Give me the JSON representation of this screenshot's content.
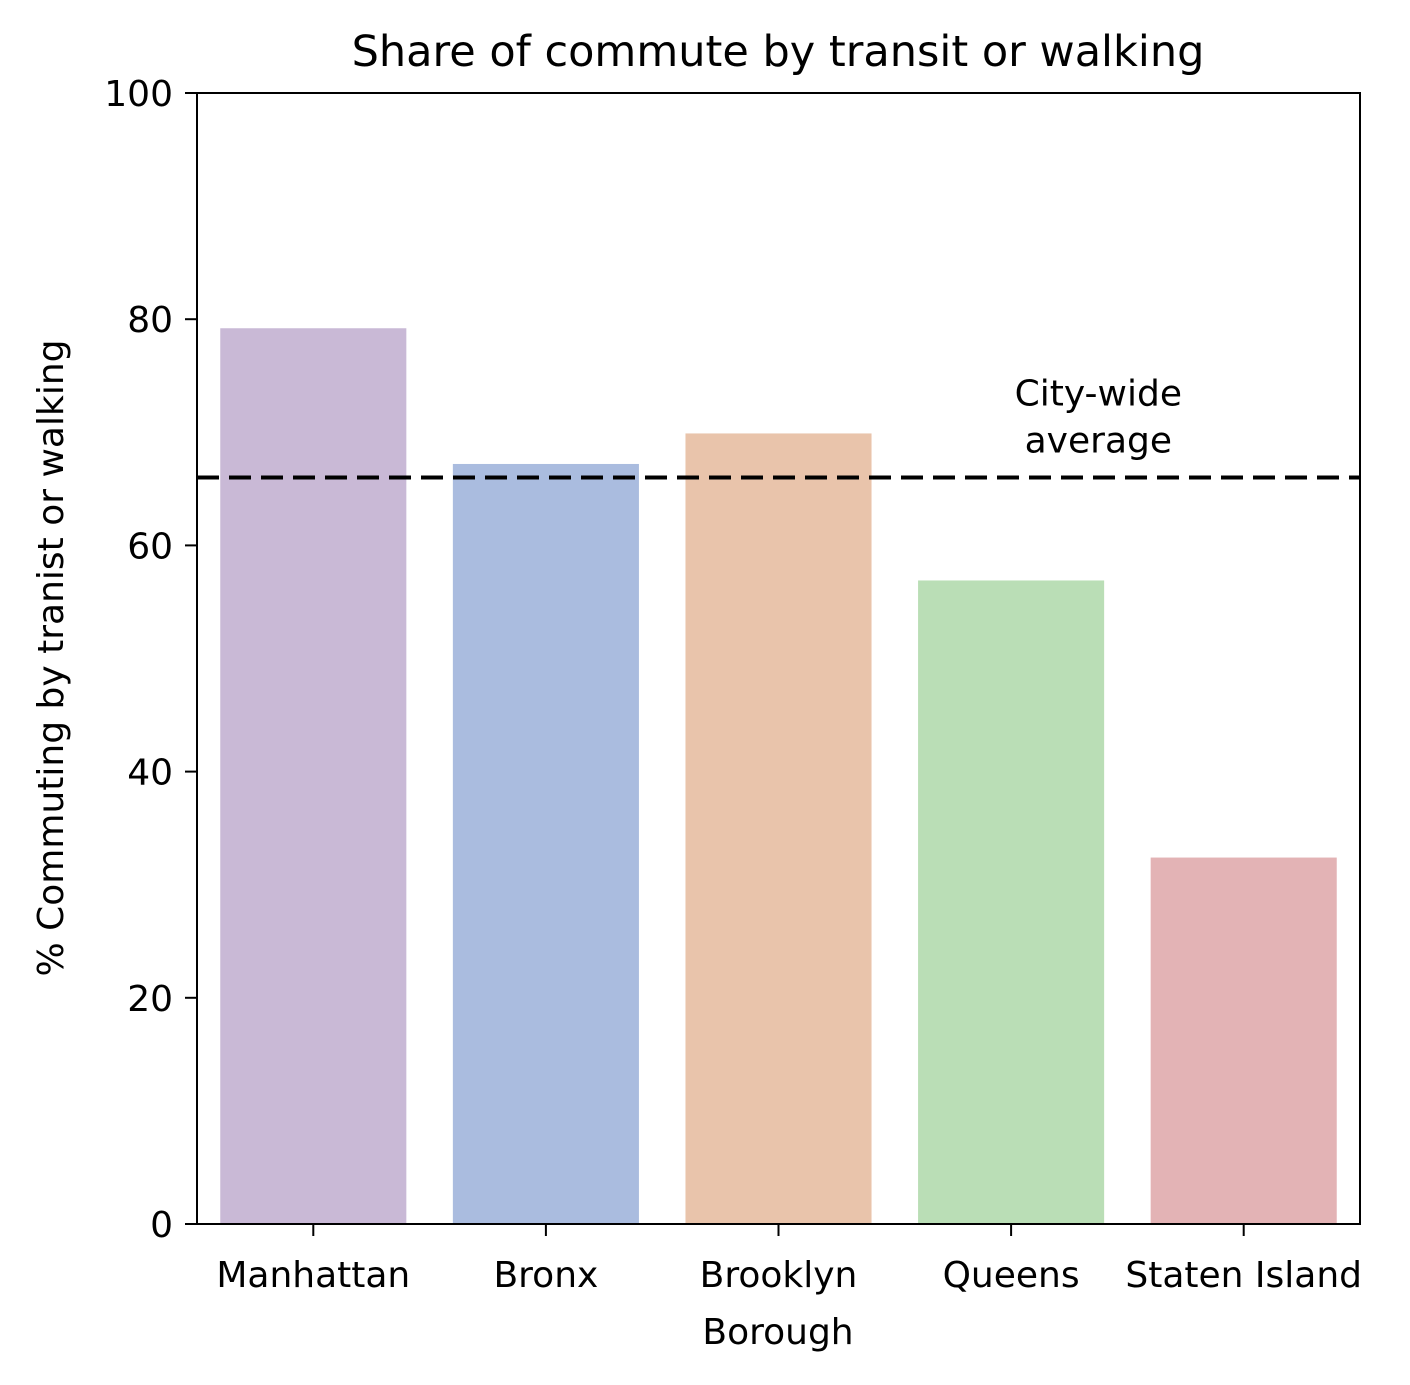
{
  "chart_data": {
    "type": "bar",
    "title": "Share of commute by transit or walking",
    "xlabel": "Borough",
    "ylabel": "% Commuting by tranist or walking",
    "categories": [
      "Manhattan",
      "Bronx",
      "Brooklyn",
      "Queens",
      "Staten Island"
    ],
    "values": [
      79.2,
      67.2,
      69.9,
      56.9,
      32.4
    ],
    "colors": [
      "#c9b9d6",
      "#aabcdf",
      "#e9c4ab",
      "#badeb6",
      "#e3b3b5"
    ],
    "ylim": [
      0,
      100
    ],
    "yticks": [
      0,
      20,
      40,
      60,
      80,
      100
    ],
    "grid": false,
    "reference_line": {
      "value": 66,
      "style": "dashed",
      "color": "#000000",
      "label_lines": [
        "City-wide",
        "average"
      ]
    }
  }
}
